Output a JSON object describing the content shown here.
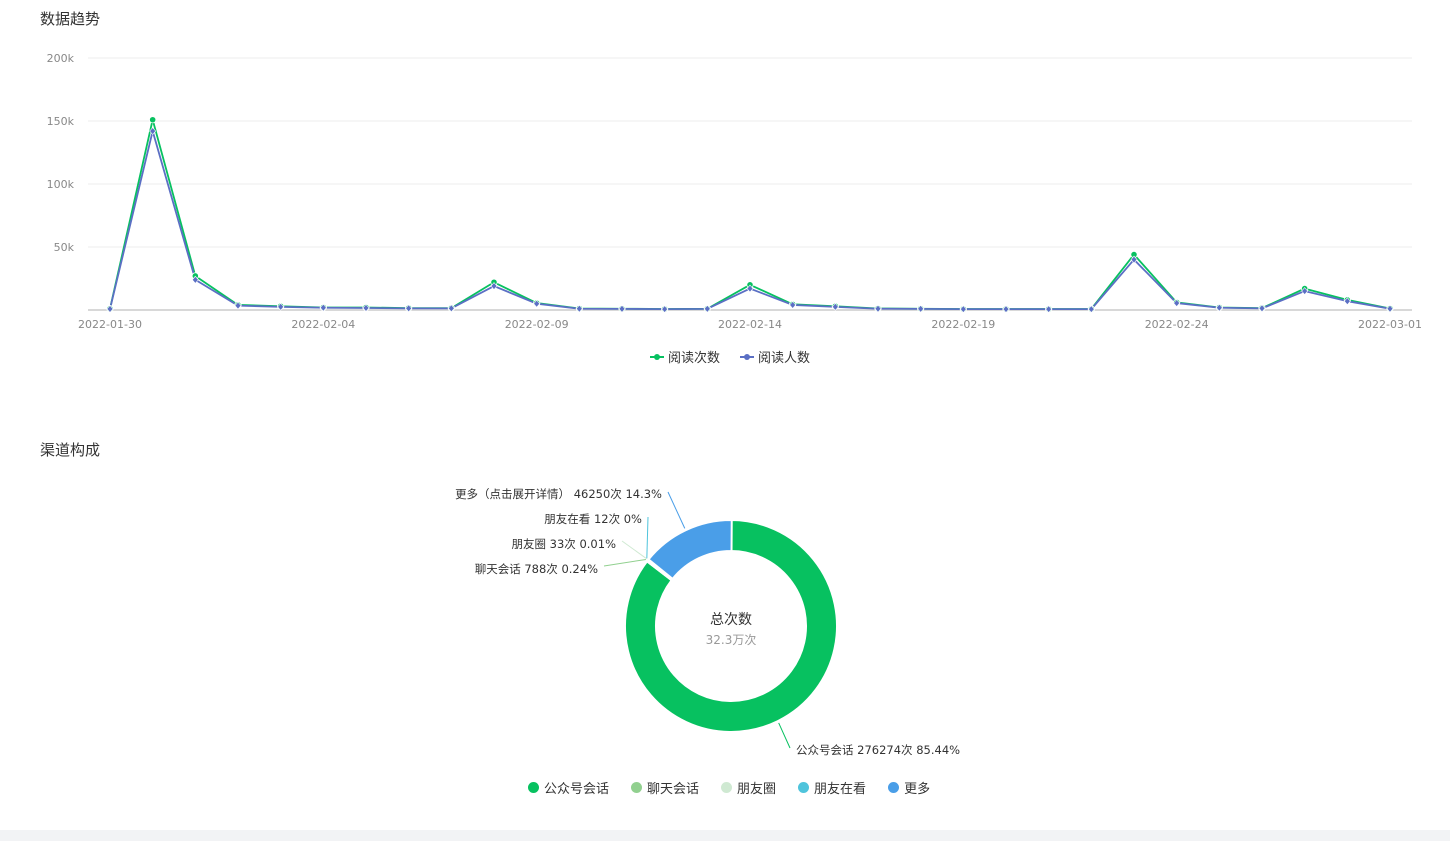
{
  "sections": {
    "trend_title": "数据趋势",
    "channel_title": "渠道构成"
  },
  "colors": {
    "reads": "#07c160",
    "readers": "#5b6fc4",
    "pie": [
      "#07c160",
      "#91d08f",
      "#cfe9d2",
      "#4fc4dc",
      "#4a9ee8"
    ]
  },
  "chart_data": [
    {
      "type": "line",
      "title": "数据趋势",
      "ylim": [
        0,
        200000
      ],
      "yticks": [
        {
          "value": 50000,
          "label": "50k"
        },
        {
          "value": 100000,
          "label": "100k"
        },
        {
          "value": 150000,
          "label": "150k"
        },
        {
          "value": 200000,
          "label": "200k"
        }
      ],
      "x": [
        "2022-01-30",
        "2022-01-31",
        "2022-02-01",
        "2022-02-02",
        "2022-02-03",
        "2022-02-04",
        "2022-02-05",
        "2022-02-06",
        "2022-02-07",
        "2022-02-08",
        "2022-02-09",
        "2022-02-10",
        "2022-02-11",
        "2022-02-12",
        "2022-02-13",
        "2022-02-14",
        "2022-02-15",
        "2022-02-16",
        "2022-02-17",
        "2022-02-18",
        "2022-02-19",
        "2022-02-20",
        "2022-02-21",
        "2022-02-22",
        "2022-02-23",
        "2022-02-24",
        "2022-02-25",
        "2022-02-26",
        "2022-02-27",
        "2022-02-28",
        "2022-03-01"
      ],
      "xtick_labels": [
        "2022-01-30",
        "2022-02-04",
        "2022-02-09",
        "2022-02-14",
        "2022-02-19",
        "2022-02-24",
        "2022-03-01"
      ],
      "series": [
        {
          "name": "阅读次数",
          "values": [
            1000,
            151000,
            27000,
            4000,
            3000,
            2000,
            2000,
            1500,
            1500,
            22000,
            5500,
            1200,
            1000,
            800,
            1000,
            20000,
            4500,
            3000,
            1200,
            1000,
            800,
            800,
            800,
            800,
            44000,
            6000,
            2000,
            1500,
            17000,
            8000,
            1200
          ]
        },
        {
          "name": "阅读人数",
          "values": [
            800,
            142000,
            24000,
            3500,
            2500,
            1800,
            1600,
            1300,
            1300,
            19000,
            5000,
            1000,
            900,
            700,
            900,
            17000,
            4000,
            2500,
            1000,
            900,
            700,
            700,
            700,
            700,
            40000,
            5500,
            1800,
            1300,
            15000,
            7000,
            1000
          ]
        }
      ],
      "legend": "bottom-center",
      "grid": true
    },
    {
      "type": "pie",
      "title": "渠道构成",
      "center_label": "总次数",
      "center_value": "32.3万次",
      "slices": [
        {
          "name": "公众号会话",
          "value": 276274,
          "label": "公众号会话 276274次 85.44%"
        },
        {
          "name": "聊天会话",
          "value": 788,
          "label": "聊天会话 788次 0.24%"
        },
        {
          "name": "朋友圈",
          "value": 33,
          "label": "朋友圈 33次 0.01%"
        },
        {
          "name": "朋友在看",
          "value": 12,
          "label": "朋友在看 12次 0%"
        },
        {
          "name": "更多",
          "value": 46250,
          "label": "更多（点击展开详情） 46250次 14.3%"
        }
      ],
      "legend": "bottom-center"
    }
  ]
}
